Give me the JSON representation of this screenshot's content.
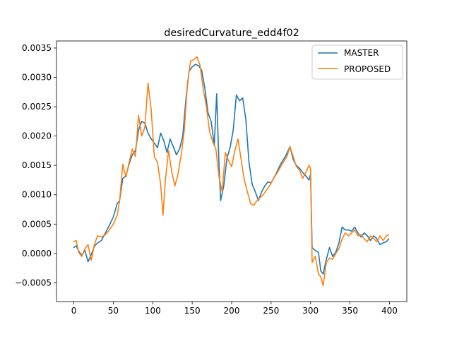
{
  "chart_data": {
    "type": "line",
    "title": "desiredCurvature_edd4f02",
    "xlabel": "",
    "ylabel": "",
    "xlim": [
      -22,
      422
    ],
    "ylim": [
      -0.00082,
      0.00362
    ],
    "xticks": [
      0,
      50,
      100,
      150,
      200,
      250,
      300,
      350,
      400
    ],
    "xtick_labels": [
      "0",
      "50",
      "100",
      "150",
      "200",
      "250",
      "300",
      "350",
      "400"
    ],
    "yticks": [
      -0.0005,
      0.0,
      0.0005,
      0.001,
      0.0015,
      0.002,
      0.0025,
      0.003,
      0.0035
    ],
    "ytick_labels": [
      "−0.0005",
      "0.0000",
      "0.0005",
      "0.0010",
      "0.0015",
      "0.0020",
      "0.0025",
      "0.0030",
      "0.0035"
    ],
    "grid": false,
    "legend_position": "top-right",
    "series": [
      {
        "name": "MASTER",
        "color": "#1f77b4",
        "points": [
          [
            0,
            0.0001
          ],
          [
            3,
            0.00013
          ],
          [
            6,
            4e-05
          ],
          [
            10,
            -3e-05
          ],
          [
            14,
            5e-05
          ],
          [
            18,
            -0.00014
          ],
          [
            22,
            -2e-05
          ],
          [
            26,
            0.00012
          ],
          [
            30,
            0.00018
          ],
          [
            35,
            0.00022
          ],
          [
            40,
            0.00035
          ],
          [
            45,
            0.00048
          ],
          [
            50,
            0.00062
          ],
          [
            55,
            0.00085
          ],
          [
            58,
            0.0009
          ],
          [
            62,
            0.00128
          ],
          [
            66,
            0.00132
          ],
          [
            70,
            0.00152
          ],
          [
            74,
            0.00168
          ],
          [
            78,
            0.00175
          ],
          [
            82,
            0.0021
          ],
          [
            86,
            0.00225
          ],
          [
            90,
            0.00222
          ],
          [
            94,
            0.00205
          ],
          [
            98,
            0.00195
          ],
          [
            102,
            0.00188
          ],
          [
            106,
            0.0018
          ],
          [
            110,
            0.00205
          ],
          [
            114,
            0.00192
          ],
          [
            118,
            0.00172
          ],
          [
            122,
            0.00195
          ],
          [
            126,
            0.00182
          ],
          [
            130,
            0.00168
          ],
          [
            134,
            0.00178
          ],
          [
            138,
            0.002
          ],
          [
            142,
            0.00262
          ],
          [
            146,
            0.0031
          ],
          [
            150,
            0.00318
          ],
          [
            154,
            0.00322
          ],
          [
            158,
            0.0032
          ],
          [
            162,
            0.00312
          ],
          [
            166,
            0.00282
          ],
          [
            170,
            0.0024
          ],
          [
            174,
            0.00225
          ],
          [
            178,
            0.00185
          ],
          [
            181,
            0.00272
          ],
          [
            184,
            0.0015
          ],
          [
            186,
            0.0009
          ],
          [
            190,
            0.00115
          ],
          [
            194,
            0.00162
          ],
          [
            198,
            0.0018
          ],
          [
            202,
            0.0021
          ],
          [
            206,
            0.0027
          ],
          [
            210,
            0.0026
          ],
          [
            214,
            0.00265
          ],
          [
            218,
            0.00228
          ],
          [
            222,
            0.00155
          ],
          [
            226,
            0.00118
          ],
          [
            230,
            0.00105
          ],
          [
            234,
            0.0009
          ],
          [
            238,
            0.00105
          ],
          [
            242,
            0.00115
          ],
          [
            246,
            0.00122
          ],
          [
            250,
            0.0012
          ],
          [
            256,
            0.00135
          ],
          [
            262,
            0.00152
          ],
          [
            268,
            0.00165
          ],
          [
            274,
            0.00182
          ],
          [
            278,
            0.0016
          ],
          [
            282,
            0.0015
          ],
          [
            286,
            0.00145
          ],
          [
            290,
            0.00138
          ],
          [
            294,
            0.00132
          ],
          [
            298,
            0.00125
          ],
          [
            300,
            0.00135
          ],
          [
            302,
            0.0001
          ],
          [
            306,
            5e-05
          ],
          [
            310,
            2e-05
          ],
          [
            313,
            -0.0003
          ],
          [
            316,
            -0.00035
          ],
          [
            320,
            -0.0001
          ],
          [
            324,
            0.0001
          ],
          [
            328,
            -5e-05
          ],
          [
            332,
            2e-05
          ],
          [
            336,
            0.00018
          ],
          [
            340,
            0.00045
          ],
          [
            344,
            0.0004
          ],
          [
            348,
            0.0004
          ],
          [
            352,
            0.00038
          ],
          [
            356,
            0.00045
          ],
          [
            360,
            0.00035
          ],
          [
            364,
            0.00028
          ],
          [
            368,
            0.00035
          ],
          [
            372,
            0.0003
          ],
          [
            376,
            0.00022
          ],
          [
            380,
            0.0003
          ],
          [
            384,
            0.00025
          ],
          [
            388,
            0.00015
          ],
          [
            392,
            0.00018
          ],
          [
            396,
            0.0002
          ],
          [
            399,
            0.00025
          ]
        ]
      },
      {
        "name": "PROPOSED",
        "color": "#ff7f0e",
        "points": [
          [
            0,
            0.0002
          ],
          [
            3,
            0.00022
          ],
          [
            6,
            2e-05
          ],
          [
            10,
            -5e-05
          ],
          [
            14,
            8e-05
          ],
          [
            18,
            0.00015
          ],
          [
            22,
            -0.00012
          ],
          [
            26,
            0.00015
          ],
          [
            30,
            0.0003
          ],
          [
            35,
            0.00028
          ],
          [
            40,
            0.00032
          ],
          [
            45,
            0.0004
          ],
          [
            50,
            0.0005
          ],
          [
            55,
            0.00065
          ],
          [
            58,
            0.0009
          ],
          [
            62,
            0.00152
          ],
          [
            66,
            0.0013
          ],
          [
            70,
            0.00155
          ],
          [
            74,
            0.00178
          ],
          [
            78,
            0.00165
          ],
          [
            82,
            0.00235
          ],
          [
            86,
            0.002
          ],
          [
            90,
            0.00215
          ],
          [
            94,
            0.0029
          ],
          [
            98,
            0.00245
          ],
          [
            102,
            0.00165
          ],
          [
            106,
            0.00155
          ],
          [
            110,
            0.00118
          ],
          [
            113,
            0.00065
          ],
          [
            116,
            0.00125
          ],
          [
            120,
            0.00175
          ],
          [
            124,
            0.0014
          ],
          [
            128,
            0.00115
          ],
          [
            132,
            0.00135
          ],
          [
            136,
            0.00168
          ],
          [
            140,
            0.0021
          ],
          [
            144,
            0.0029
          ],
          [
            148,
            0.00328
          ],
          [
            152,
            0.0033
          ],
          [
            156,
            0.00335
          ],
          [
            160,
            0.0032
          ],
          [
            164,
            0.0028
          ],
          [
            168,
            0.0025
          ],
          [
            172,
            0.00208
          ],
          [
            176,
            0.0019
          ],
          [
            180,
            0.00178
          ],
          [
            184,
            0.0013
          ],
          [
            188,
            0.00105
          ],
          [
            192,
            0.00172
          ],
          [
            196,
            0.00158
          ],
          [
            200,
            0.00148
          ],
          [
            204,
            0.00175
          ],
          [
            208,
            0.00195
          ],
          [
            212,
            0.0016
          ],
          [
            216,
            0.00125
          ],
          [
            220,
            0.00105
          ],
          [
            224,
            0.00085
          ],
          [
            228,
            0.00082
          ],
          [
            232,
            0.0009
          ],
          [
            236,
            0.00095
          ],
          [
            240,
            0.001
          ],
          [
            244,
            0.00108
          ],
          [
            248,
            0.00115
          ],
          [
            252,
            0.00125
          ],
          [
            258,
            0.00138
          ],
          [
            264,
            0.00152
          ],
          [
            270,
            0.00165
          ],
          [
            274,
            0.00182
          ],
          [
            278,
            0.00165
          ],
          [
            282,
            0.00148
          ],
          [
            286,
            0.00142
          ],
          [
            290,
            0.00128
          ],
          [
            294,
            0.00138
          ],
          [
            298,
            0.0015
          ],
          [
            300,
            0.00145
          ],
          [
            302,
            -0.00015
          ],
          [
            306,
            -5e-05
          ],
          [
            310,
            -0.00035
          ],
          [
            313,
            -0.0004
          ],
          [
            316,
            -0.00055
          ],
          [
            320,
            -0.00015
          ],
          [
            324,
            -8e-05
          ],
          [
            328,
            -0.0001
          ],
          [
            332,
            0.0
          ],
          [
            336,
            8e-05
          ],
          [
            340,
            0.00025
          ],
          [
            344,
            0.00035
          ],
          [
            348,
            0.0003
          ],
          [
            352,
            0.00035
          ],
          [
            356,
            0.0004
          ],
          [
            360,
            0.0003
          ],
          [
            364,
            0.00032
          ],
          [
            368,
            0.00025
          ],
          [
            372,
            0.0002
          ],
          [
            376,
            0.0003
          ],
          [
            380,
            0.00025
          ],
          [
            384,
            0.0002
          ],
          [
            388,
            0.0003
          ],
          [
            392,
            0.00022
          ],
          [
            396,
            0.0003
          ],
          [
            399,
            0.00032
          ]
        ]
      }
    ]
  }
}
